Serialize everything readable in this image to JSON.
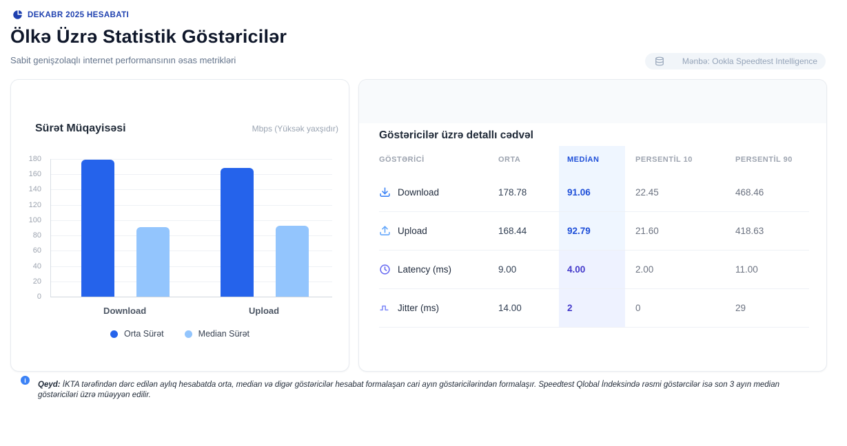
{
  "header": {
    "report_badge": "DEKABR 2025 HESABATI",
    "title": "Ölkə Üzrə Statistik Göstəricilər",
    "subtitle": "Sabit genişzolaqlı internet performansının əsas metrikləri",
    "source_badge": "Mənbə: Ookla Speedtest Intelligence"
  },
  "chart_data": {
    "type": "bar",
    "title": "Sürət Müqayisəsi",
    "unit_label": "Mbps (Yüksək yaxşıdır)",
    "categories": [
      "Download",
      "Upload"
    ],
    "series": [
      {
        "name": "Orta Sürət",
        "color": "#2563eb",
        "values": [
          178.78,
          168.44
        ]
      },
      {
        "name": "Median Sürət",
        "color": "#93c5fd",
        "values": [
          91.06,
          92.79
        ]
      }
    ],
    "ylim": [
      0,
      180
    ],
    "ytick_step": 20,
    "grid": true,
    "legend_position": "bottom"
  },
  "table": {
    "title": "Göstəricilər üzrə detallı cədvəl",
    "columns": [
      "GÖSTƏRİCİ",
      "ORTA",
      "MEDİAN",
      "PERSENTİL 10",
      "PERSENTİL 90"
    ],
    "highlight_column": "MEDİAN",
    "rows": [
      {
        "icon": "download-icon",
        "label": "Download",
        "orta": "178.78",
        "median": "91.06",
        "p10": "22.45",
        "p90": "468.46",
        "accent": "blue"
      },
      {
        "icon": "upload-icon",
        "label": "Upload",
        "orta": "168.44",
        "median": "92.79",
        "p10": "21.60",
        "p90": "418.63",
        "accent": "blue"
      },
      {
        "icon": "clock-icon",
        "label": "Latency (ms)",
        "orta": "9.00",
        "median": "4.00",
        "p10": "2.00",
        "p90": "11.00",
        "accent": "indigo"
      },
      {
        "icon": "jitter-icon",
        "label": "Jitter (ms)",
        "orta": "14.00",
        "median": "2",
        "p10": "0",
        "p90": "29",
        "accent": "indigo"
      }
    ]
  },
  "note": {
    "label": "Qeyd:",
    "text": "İKTA tərəfindən dərc edilən aylıq hesabatda orta, median və digər göstəricilər hesabat formalaşan cari ayın göstəricilərindən formalaşır. Speedtest Qlobal İndeksində rəsmi göstərcilər isə son 3 ayın median göstəriciləri üzrə müəyyən edilir."
  },
  "colors": {
    "accent_blue": "#2563eb",
    "light_blue": "#93c5fd",
    "median_blue": "#1d4ed8",
    "median_indigo": "#4338ca",
    "band_blue": "#eff6ff",
    "band_indigo": "#eef2ff",
    "badge_bg": "#f1f5f9"
  }
}
